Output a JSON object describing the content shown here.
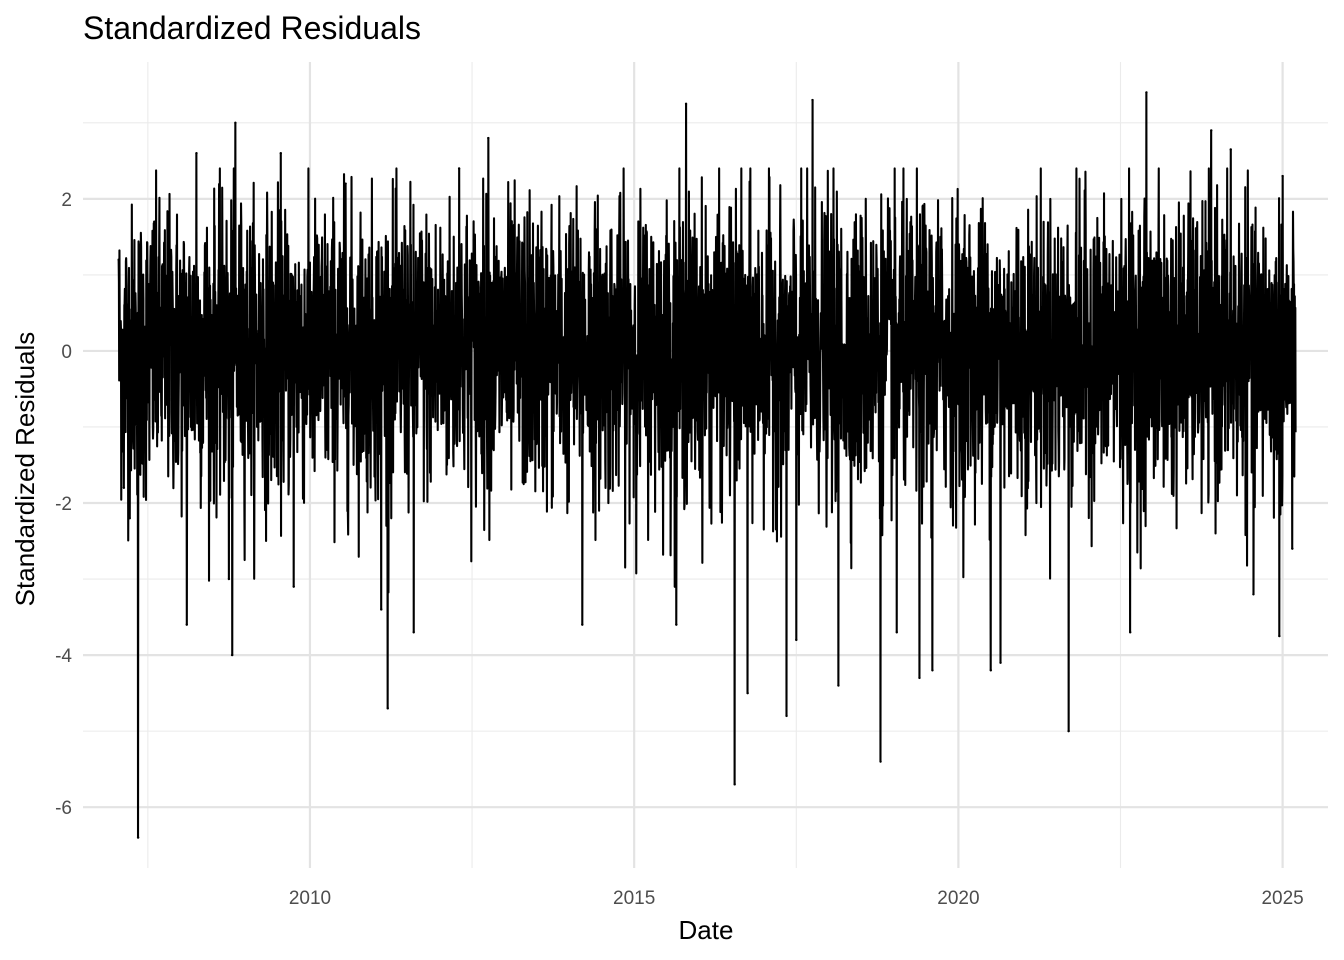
{
  "chart_data": {
    "type": "line",
    "title": "Standardized Residuals",
    "xlabel": "Date",
    "ylabel": "Standardized Residuals",
    "xlim": [
      2006.5,
      2025.7
    ],
    "ylim": [
      -6.8,
      3.8
    ],
    "x_ticks": [
      {
        "value": 2010,
        "label": "2010"
      },
      {
        "value": 2015,
        "label": "2015"
      },
      {
        "value": 2020,
        "label": "2020"
      },
      {
        "value": 2025,
        "label": "2025"
      }
    ],
    "x_minor_ticks": [
      2007.5,
      2012.5,
      2017.5,
      2022.5
    ],
    "y_ticks": [
      {
        "value": 2,
        "label": "2"
      },
      {
        "value": 0,
        "label": "0"
      },
      {
        "value": -2,
        "label": "-2"
      },
      {
        "value": -4,
        "label": "-4"
      },
      {
        "value": -6,
        "label": "-6"
      }
    ],
    "y_minor_ticks": [
      3,
      1,
      -1,
      -3,
      -5
    ],
    "grid": true,
    "series": [
      {
        "name": "Standardized Residuals",
        "color": "#000000",
        "x_start": 2007.05,
        "x_end": 2025.2,
        "points": 4560,
        "distribution": "approximately N(0,1), heavy left tail",
        "notable_values": [
          {
            "x": 2007.05,
            "y": 1.2
          },
          {
            "x": 2007.1,
            "y": -0.6
          },
          {
            "x": 2007.13,
            "y": -1.8
          },
          {
            "x": 2007.22,
            "y": -2.2
          },
          {
            "x": 2007.35,
            "y": -6.4
          },
          {
            "x": 2007.6,
            "y": 1.7
          },
          {
            "x": 2008.1,
            "y": -3.6
          },
          {
            "x": 2008.25,
            "y": 2.6
          },
          {
            "x": 2008.75,
            "y": -3.0
          },
          {
            "x": 2008.8,
            "y": -4.0
          },
          {
            "x": 2008.85,
            "y": 3.0
          },
          {
            "x": 2009.55,
            "y": 2.6
          },
          {
            "x": 2009.75,
            "y": -3.1
          },
          {
            "x": 2010.55,
            "y": 2.2
          },
          {
            "x": 2011.1,
            "y": -3.4
          },
          {
            "x": 2011.2,
            "y": -4.7
          },
          {
            "x": 2011.6,
            "y": -3.7
          },
          {
            "x": 2012.3,
            "y": 2.4
          },
          {
            "x": 2012.75,
            "y": 2.8
          },
          {
            "x": 2014.2,
            "y": -3.6
          },
          {
            "x": 2015.65,
            "y": -3.6
          },
          {
            "x": 2015.8,
            "y": 3.25
          },
          {
            "x": 2016.55,
            "y": -5.7
          },
          {
            "x": 2016.75,
            "y": -4.5
          },
          {
            "x": 2017.35,
            "y": -4.8
          },
          {
            "x": 2017.5,
            "y": -3.8
          },
          {
            "x": 2017.75,
            "y": 3.3
          },
          {
            "x": 2018.15,
            "y": -4.4
          },
          {
            "x": 2018.8,
            "y": -5.4
          },
          {
            "x": 2019.05,
            "y": -3.7
          },
          {
            "x": 2019.4,
            "y": -4.3
          },
          {
            "x": 2019.6,
            "y": -4.2
          },
          {
            "x": 2020.5,
            "y": -4.2
          },
          {
            "x": 2020.65,
            "y": -4.1
          },
          {
            "x": 2021.7,
            "y": -5.0
          },
          {
            "x": 2022.65,
            "y": -3.7
          },
          {
            "x": 2022.9,
            "y": 3.4
          },
          {
            "x": 2023.9,
            "y": 2.9
          },
          {
            "x": 2024.2,
            "y": 2.65
          },
          {
            "x": 2024.55,
            "y": -3.2
          },
          {
            "x": 2024.95,
            "y": -3.75
          },
          {
            "x": 2025.0,
            "y": 2.3
          },
          {
            "x": 2025.15,
            "y": -2.6
          }
        ]
      }
    ],
    "legend": "none"
  }
}
